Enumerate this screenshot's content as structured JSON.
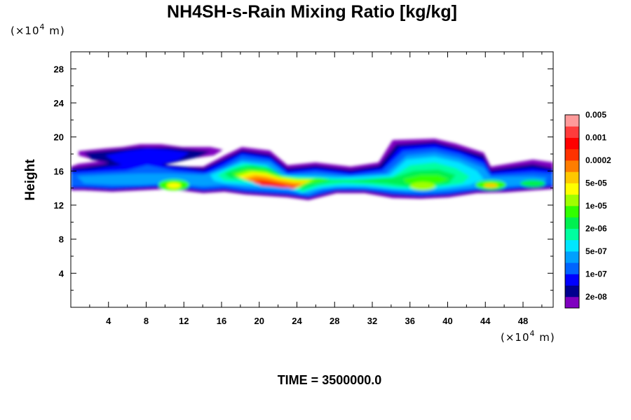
{
  "chart_data": {
    "type": "heatmap",
    "title": "NH4SH-s-Rain Mixing Ratio [kg/kg]",
    "xlabel": "",
    "ylabel": "Height",
    "x_unit": {
      "prefix": "(×10",
      "exp": "4",
      "suffix": " m)"
    },
    "y_unit": {
      "prefix": "(×10",
      "exp": "4",
      "suffix": " m)"
    },
    "xlim": [
      0,
      51.2
    ],
    "ylim": [
      0,
      30
    ],
    "x_ticks": [
      "4",
      "8",
      "12",
      "16",
      "20",
      "24",
      "28",
      "32",
      "36",
      "40",
      "44",
      "48"
    ],
    "y_ticks": [
      "4",
      "8",
      "12",
      "16",
      "20",
      "24",
      "28"
    ],
    "colorbar": {
      "colors": [
        "#7f00bf",
        "#00008f",
        "#0000ff",
        "#0064ff",
        "#00a0ff",
        "#00e6ff",
        "#00ffa0",
        "#00f050",
        "#32ff00",
        "#a0ff00",
        "#ffff00",
        "#ffc800",
        "#ff7d00",
        "#ff3200",
        "#ff0000",
        "#ff3c3c",
        "#ff9a9a"
      ],
      "labels": [
        "2e-08",
        "1e-07",
        "5e-07",
        "2e-06",
        "1e-05",
        "5e-05",
        "0.0002",
        "0.001",
        "0.005"
      ]
    },
    "cloud_layer": {
      "base_height": 13.5,
      "top_height": 18.5,
      "x_extent": [
        0,
        51.2
      ],
      "max_region_x": [
        18,
        26
      ],
      "max_region_height": [
        13,
        15
      ]
    },
    "time_label": "TIME = 3500000.0"
  }
}
